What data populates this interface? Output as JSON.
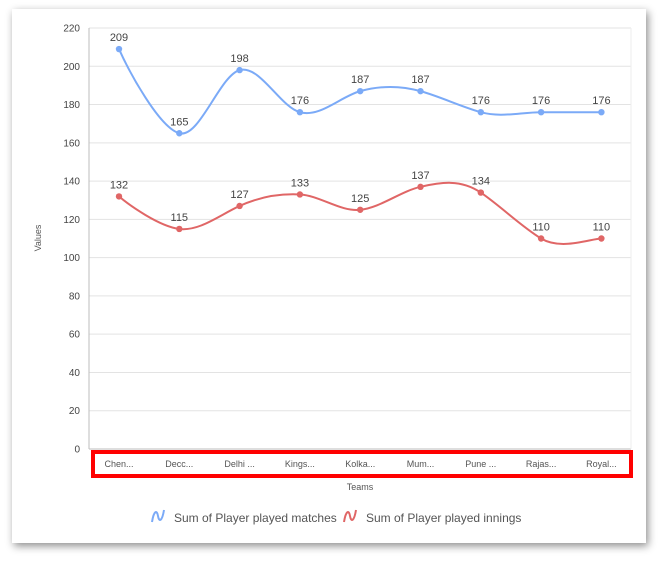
{
  "chart_data": {
    "type": "line",
    "categories": [
      "Chen...",
      "Decc...",
      "Delhi ...",
      "Kings...",
      "Kolka...",
      "Mum...",
      "Pune ...",
      "Rajas...",
      "Royal..."
    ],
    "series": [
      {
        "name": "Sum of Player played matches",
        "values": [
          209,
          165,
          198,
          176,
          187,
          187,
          176,
          176,
          176
        ],
        "color": "#7baaf7"
      },
      {
        "name": "Sum of Player played innings",
        "values": [
          132,
          115,
          127,
          133,
          125,
          137,
          134,
          110,
          110
        ],
        "color": "#e06666"
      }
    ],
    "xlabel": "Teams",
    "ylabel": "Values",
    "ylim": [
      0,
      220
    ],
    "yticks": [
      0,
      20,
      40,
      60,
      80,
      100,
      120,
      140,
      160,
      180,
      200,
      220
    ],
    "grid": true,
    "legend": "bottom",
    "smooth": true
  },
  "annotation": {
    "highlight_color": "#ff0000"
  }
}
